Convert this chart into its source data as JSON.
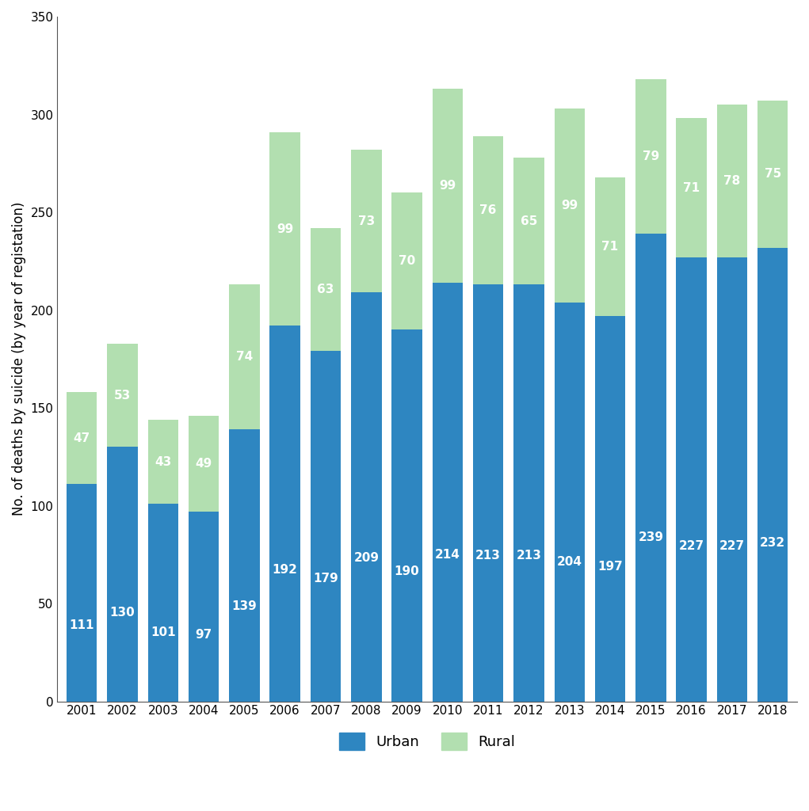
{
  "years": [
    2001,
    2002,
    2003,
    2004,
    2005,
    2006,
    2007,
    2008,
    2009,
    2010,
    2011,
    2012,
    2013,
    2014,
    2015,
    2016,
    2017,
    2018
  ],
  "urban": [
    111,
    130,
    101,
    97,
    139,
    192,
    179,
    209,
    190,
    214,
    213,
    213,
    204,
    197,
    239,
    227,
    227,
    232
  ],
  "rural": [
    47,
    53,
    43,
    49,
    74,
    99,
    63,
    73,
    70,
    99,
    76,
    65,
    99,
    71,
    79,
    71,
    78,
    75
  ],
  "urban_color": "#2e86c1",
  "rural_color": "#b2dfb0",
  "ylabel": "No. of deaths by suicide (by year of registation)",
  "ylim": [
    0,
    350
  ],
  "yticks": [
    0,
    50,
    100,
    150,
    200,
    250,
    300,
    350
  ],
  "legend_labels": [
    "Urban",
    "Rural"
  ],
  "background_color": "#ffffff",
  "label_fontsize": 12,
  "tick_fontsize": 11,
  "bar_label_fontsize": 11,
  "bar_width": 0.75
}
